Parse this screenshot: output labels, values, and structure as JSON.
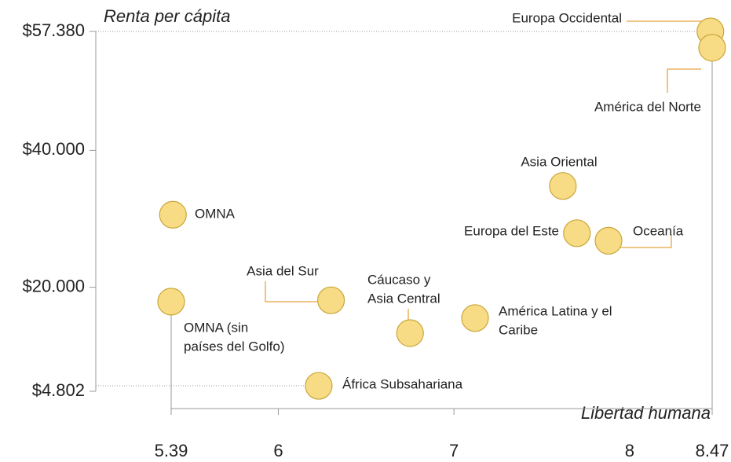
{
  "chart_data": {
    "type": "scatter",
    "y_label": "Renta per cápita",
    "x_label": "Libertad humana",
    "xlim": [
      5.39,
      8.47
    ],
    "xticks": [
      5.39,
      6,
      7,
      8,
      8.47
    ],
    "ylim": [
      4802,
      57380
    ],
    "yticks": [
      {
        "value": 57380,
        "label": "$57.380"
      },
      {
        "value": 40000,
        "label": "$40.000"
      },
      {
        "value": 20000,
        "label": "$20.000"
      },
      {
        "value": 4802,
        "label": "$4.802"
      }
    ],
    "color": "#f7dc85",
    "labels": [
      [
        "Europa Occidental"
      ],
      [
        "América del Norte"
      ],
      [
        "Asia Oriental"
      ],
      [
        "Europa del Este"
      ],
      [
        "Oceanía"
      ],
      [
        "OMNA"
      ],
      [
        "OMNA (sin",
        "países del Golfo)"
      ],
      [
        "Asia del Sur"
      ],
      [
        "Cáucaso y",
        "Asia Central"
      ],
      [
        "América Latina y el",
        "Caribe"
      ],
      [
        "África Subsahariana"
      ]
    ],
    "x": [
      8.46,
      8.47,
      7.62,
      7.7,
      7.88,
      5.4,
      5.39,
      6.3,
      6.75,
      7.12,
      6.23
    ],
    "values": [
      57380,
      55000,
      34800,
      27900,
      26800,
      30600,
      17900,
      18100,
      13300,
      15500,
      5600
    ]
  }
}
